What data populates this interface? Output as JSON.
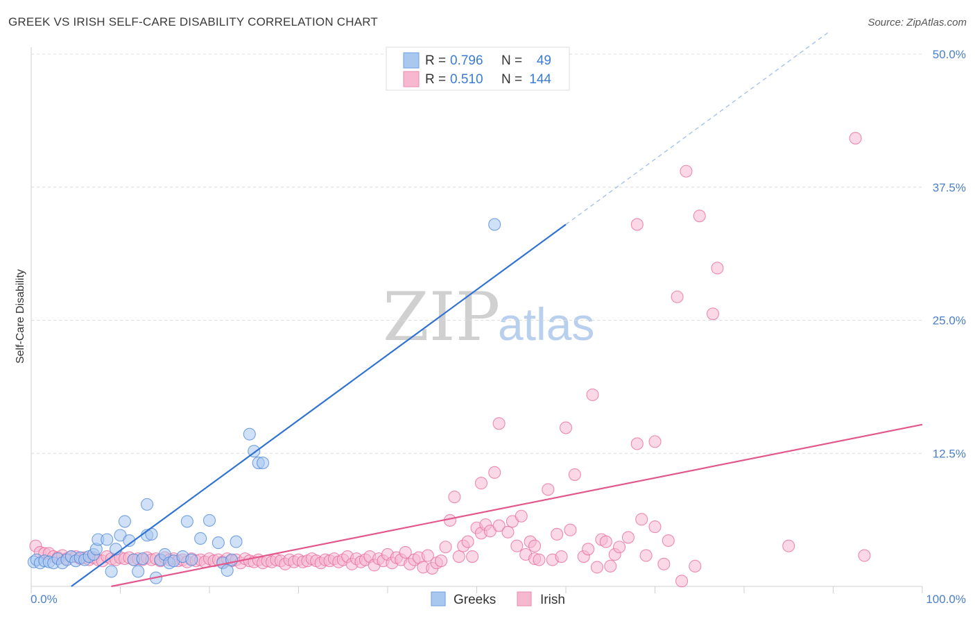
{
  "title": "GREEK VS IRISH SELF-CARE DISABILITY CORRELATION CHART",
  "source": "Source: ZipAtlas.com",
  "watermark": {
    "part1": "ZIP",
    "part2": "atlas"
  },
  "colors": {
    "greek": "#4a86d8",
    "greek_fill": "#a9c8f0",
    "irish": "#e8689a",
    "irish_fill": "#f6b8cf",
    "tick": "#4a7fc9"
  },
  "legend": {
    "rows": [
      {
        "r_label": "R = ",
        "r_value": "0.796",
        "n_label": "N = ",
        "n_value": "49"
      },
      {
        "r_label": "R = ",
        "r_value": "0.510",
        "n_label": "N = ",
        "n_value": "144"
      }
    ]
  },
  "bottom_legend": [
    "Greeks",
    "Irish"
  ],
  "chart_data": {
    "type": "scatter",
    "title": "GREEK VS IRISH SELF-CARE DISABILITY CORRELATION CHART",
    "xlabel": "",
    "ylabel": "Self-Care Disability",
    "xlim": [
      0,
      100
    ],
    "ylim": [
      0,
      50
    ],
    "x_tick_labels": [
      "0.0%",
      "100.0%"
    ],
    "y_ticks": [
      12.5,
      25.0,
      37.5,
      50.0
    ],
    "y_tick_labels": [
      "12.5%",
      "25.0%",
      "37.5%",
      "50.0%"
    ],
    "grid": true,
    "series": [
      {
        "name": "Greeks",
        "r": 0.796,
        "n": 49,
        "trend": {
          "x0": 4.5,
          "y0": 0.0,
          "x1": 60,
          "y1": 34.0,
          "dash_to_x": 100
        },
        "points": [
          [
            0.3,
            2.3
          ],
          [
            0.6,
            2.5
          ],
          [
            1,
            2.2
          ],
          [
            1.5,
            2.4
          ],
          [
            2,
            2.3
          ],
          [
            2.5,
            2.2
          ],
          [
            3,
            2.6
          ],
          [
            3.5,
            2.2
          ],
          [
            4,
            2.5
          ],
          [
            4.5,
            2.8
          ],
          [
            5,
            2.4
          ],
          [
            5.5,
            2.7
          ],
          [
            6,
            2.5
          ],
          [
            6.5,
            2.8
          ],
          [
            7,
            3
          ],
          [
            7.3,
            3.5
          ],
          [
            7.5,
            4.4
          ],
          [
            8.5,
            4.4
          ],
          [
            9,
            1.4
          ],
          [
            9.5,
            3.5
          ],
          [
            10,
            4.8
          ],
          [
            10.5,
            6.1
          ],
          [
            11,
            4.3
          ],
          [
            11.5,
            2.5
          ],
          [
            12,
            1.4
          ],
          [
            12.5,
            2.6
          ],
          [
            13,
            4.8
          ],
          [
            13,
            7.7
          ],
          [
            13.5,
            4.9
          ],
          [
            14,
            0.8
          ],
          [
            14.5,
            2.5
          ],
          [
            15,
            3
          ],
          [
            15.5,
            2.2
          ],
          [
            16,
            2.4
          ],
          [
            17,
            2.8
          ],
          [
            17.5,
            6.1
          ],
          [
            18,
            2.5
          ],
          [
            19,
            4.5
          ],
          [
            20,
            6.2
          ],
          [
            21,
            4.1
          ],
          [
            21.5,
            2.2
          ],
          [
            22,
            1.5
          ],
          [
            22.5,
            2.5
          ],
          [
            23,
            4.2
          ],
          [
            24.5,
            14.3
          ],
          [
            25,
            12.7
          ],
          [
            25.5,
            11.6
          ],
          [
            26,
            11.6
          ],
          [
            52,
            34.0
          ]
        ]
      },
      {
        "name": "Irish",
        "r": 0.51,
        "n": 144,
        "trend": {
          "x0": 0,
          "y0": -1.5,
          "x1": 100,
          "y1": 15.2
        },
        "points": [
          [
            0.5,
            3.8
          ],
          [
            1,
            3.2
          ],
          [
            1.5,
            3.1
          ],
          [
            2,
            3.1
          ],
          [
            2.5,
            2.8
          ],
          [
            3,
            2.7
          ],
          [
            3.5,
            2.9
          ],
          [
            4,
            2.6
          ],
          [
            4.5,
            2.8
          ],
          [
            5,
            2.8
          ],
          [
            5.5,
            2.6
          ],
          [
            6,
            2.7
          ],
          [
            6.5,
            2.5
          ],
          [
            7,
            2.7
          ],
          [
            7.5,
            2.5
          ],
          [
            8,
            2.4
          ],
          [
            8.5,
            2.8
          ],
          [
            9,
            2.6
          ],
          [
            9.5,
            2.5
          ],
          [
            10,
            2.7
          ],
          [
            10.5,
            2.6
          ],
          [
            11,
            2.7
          ],
          [
            11.5,
            2.5
          ],
          [
            12,
            2.6
          ],
          [
            12.5,
            2.5
          ],
          [
            13,
            2.7
          ],
          [
            13.5,
            2.5
          ],
          [
            14,
            2.6
          ],
          [
            14.5,
            2.4
          ],
          [
            15,
            2.7
          ],
          [
            15.5,
            2.5
          ],
          [
            16,
            2.6
          ],
          [
            16.5,
            2.4
          ],
          [
            17,
            2.5
          ],
          [
            17.5,
            2.3
          ],
          [
            18,
            2.6
          ],
          [
            18.5,
            2.4
          ],
          [
            19,
            2.5
          ],
          [
            19.5,
            2.3
          ],
          [
            20,
            2.6
          ],
          [
            20.5,
            2.4
          ],
          [
            21,
            2.5
          ],
          [
            21.5,
            2.3
          ],
          [
            22,
            2.6
          ],
          [
            22.5,
            2.4
          ],
          [
            23,
            2.5
          ],
          [
            23.5,
            2.2
          ],
          [
            24,
            2.6
          ],
          [
            24.5,
            2.4
          ],
          [
            25,
            2.3
          ],
          [
            25.5,
            2.5
          ],
          [
            26,
            2.2
          ],
          [
            26.5,
            2.4
          ],
          [
            27,
            2.3
          ],
          [
            27.5,
            2.5
          ],
          [
            28,
            2.4
          ],
          [
            28.5,
            2.1
          ],
          [
            29,
            2.5
          ],
          [
            29.5,
            2.3
          ],
          [
            30,
            2.5
          ],
          [
            30.5,
            2.3
          ],
          [
            31,
            2.4
          ],
          [
            31.5,
            2.6
          ],
          [
            32,
            2.4
          ],
          [
            32.5,
            2.2
          ],
          [
            33,
            2.5
          ],
          [
            33.5,
            2.4
          ],
          [
            34,
            2.6
          ],
          [
            34.5,
            2.3
          ],
          [
            35,
            2.5
          ],
          [
            35.5,
            2.8
          ],
          [
            36,
            2.1
          ],
          [
            36.5,
            2.6
          ],
          [
            37,
            2.3
          ],
          [
            37.5,
            2.5
          ],
          [
            38,
            2.8
          ],
          [
            38.5,
            2.0
          ],
          [
            39,
            2.6
          ],
          [
            39.5,
            2.4
          ],
          [
            40,
            3.0
          ],
          [
            40.5,
            2.2
          ],
          [
            41,
            2.7
          ],
          [
            41.5,
            2.5
          ],
          [
            42,
            3.2
          ],
          [
            42.5,
            2.1
          ],
          [
            43,
            2.5
          ],
          [
            43.5,
            2.7
          ],
          [
            44,
            1.8
          ],
          [
            44.5,
            2.9
          ],
          [
            45,
            1.7
          ],
          [
            45.5,
            2.2
          ],
          [
            46,
            2.4
          ],
          [
            46.5,
            3.7
          ],
          [
            47,
            6.2
          ],
          [
            47.5,
            8.4
          ],
          [
            48,
            2.8
          ],
          [
            48.5,
            3.8
          ],
          [
            49,
            4.2
          ],
          [
            49.5,
            2.8
          ],
          [
            50,
            5.5
          ],
          [
            50.5,
            9.7
          ],
          [
            50.5,
            5.0
          ],
          [
            51,
            5.8
          ],
          [
            51.5,
            5.2
          ],
          [
            52,
            10.7
          ],
          [
            52.5,
            5.7
          ],
          [
            52.5,
            15.3
          ],
          [
            53.5,
            5.1
          ],
          [
            54,
            6.1
          ],
          [
            54.5,
            3.8
          ],
          [
            55,
            6.6
          ],
          [
            55.5,
            3.0
          ],
          [
            56,
            4.2
          ],
          [
            56.5,
            3.8
          ],
          [
            56.5,
            2.6
          ],
          [
            57,
            2.5
          ],
          [
            58,
            9.1
          ],
          [
            58.5,
            2.5
          ],
          [
            59,
            4.9
          ],
          [
            59.5,
            2.8
          ],
          [
            60,
            14.9
          ],
          [
            60.5,
            5.3
          ],
          [
            61,
            10.5
          ],
          [
            62,
            2.8
          ],
          [
            62.5,
            3.5
          ],
          [
            63,
            18.0
          ],
          [
            63.5,
            1.8
          ],
          [
            64,
            4.4
          ],
          [
            64.5,
            4.2
          ],
          [
            65,
            1.9
          ],
          [
            65.5,
            3.0
          ],
          [
            66,
            3.7
          ],
          [
            67,
            4.6
          ],
          [
            68,
            34.0
          ],
          [
            68,
            13.4
          ],
          [
            68.5,
            6.3
          ],
          [
            69,
            2.9
          ],
          [
            70,
            5.6
          ],
          [
            70,
            13.6
          ],
          [
            71,
            2.1
          ],
          [
            71.5,
            4.3
          ],
          [
            72.5,
            27.2
          ],
          [
            73,
            0.5
          ],
          [
            73.5,
            39.0
          ],
          [
            74.5,
            1.9
          ],
          [
            75,
            34.8
          ],
          [
            76.5,
            25.6
          ],
          [
            77,
            29.9
          ],
          [
            85,
            3.8
          ],
          [
            92.5,
            42.1
          ],
          [
            93.5,
            2.9
          ]
        ]
      }
    ]
  }
}
